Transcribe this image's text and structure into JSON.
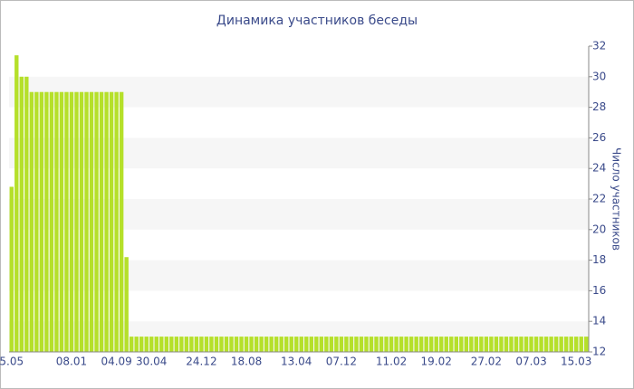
{
  "chart_data": {
    "type": "bar",
    "title": "Динамика участников беседы",
    "y_axis_label": "Число участников",
    "color": "#b5e02a",
    "grid": true,
    "categories": [
      "5.05",
      null,
      null,
      null,
      null,
      null,
      null,
      null,
      null,
      null,
      null,
      null,
      "08.01",
      null,
      null,
      null,
      null,
      null,
      null,
      null,
      null,
      "04.09",
      null,
      null,
      null,
      null,
      null,
      null,
      "30.04",
      null,
      null,
      null,
      null,
      null,
      null,
      null,
      null,
      null,
      "24.12",
      null,
      null,
      null,
      null,
      null,
      null,
      null,
      null,
      "18.08",
      null,
      null,
      null,
      null,
      null,
      null,
      null,
      null,
      null,
      "13.04",
      null,
      null,
      null,
      null,
      null,
      null,
      null,
      null,
      "07.12",
      null,
      null,
      null,
      null,
      null,
      null,
      null,
      null,
      null,
      "11.02",
      null,
      null,
      null,
      null,
      null,
      null,
      null,
      null,
      "19.02",
      null,
      null,
      null,
      null,
      null,
      null,
      null,
      null,
      null,
      "27.02",
      null,
      null,
      null,
      null,
      null,
      null,
      null,
      null,
      "07.03",
      null,
      null,
      null,
      null,
      null,
      null,
      null,
      null,
      "15.03",
      null,
      null
    ],
    "values": [
      22.8,
      31.4,
      30,
      30,
      29,
      29,
      29,
      29,
      29,
      29,
      29,
      29,
      29,
      29,
      29,
      29,
      29,
      29,
      29,
      29,
      29,
      29,
      29,
      18.2,
      13,
      13,
      13,
      13,
      13,
      13,
      13,
      13,
      13,
      13,
      13,
      13,
      13,
      13,
      13,
      13,
      13,
      13,
      13,
      13,
      13,
      13,
      13,
      13,
      13,
      13,
      13,
      13,
      13,
      13,
      13,
      13,
      13,
      13,
      13,
      13,
      13,
      13,
      13,
      13,
      13,
      13,
      13,
      13,
      13,
      13,
      13,
      13,
      13,
      13,
      13,
      13,
      13,
      13,
      13,
      13,
      13,
      13,
      13,
      13,
      13,
      13,
      13,
      13,
      13,
      13,
      13,
      13,
      13,
      13,
      13,
      13,
      13,
      13,
      13,
      13,
      13,
      13,
      13,
      13,
      13,
      13,
      13,
      13,
      13,
      13,
      13,
      13,
      13,
      13,
      13,
      13
    ],
    "ylim": [
      12,
      32
    ],
    "yticks": [
      12,
      14,
      16,
      18,
      20,
      22,
      24,
      26,
      28,
      30,
      32
    ]
  }
}
